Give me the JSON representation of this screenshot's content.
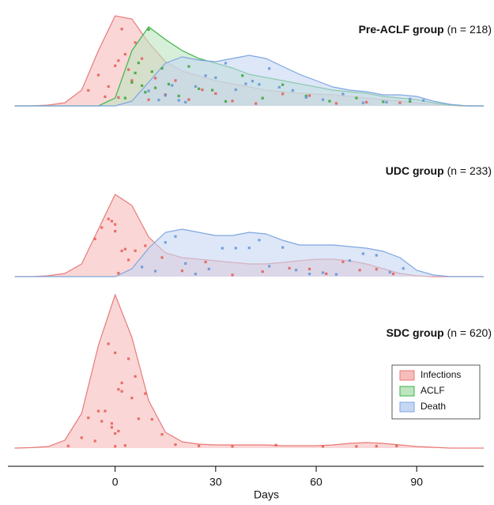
{
  "chart_data": {
    "type": "ridgeline",
    "x_label": "Days",
    "xlim": [
      -32,
      110
    ],
    "xticks": [
      0,
      30,
      60,
      90
    ],
    "x": [
      -30,
      -25,
      -20,
      -15,
      -10,
      -5,
      0,
      5,
      10,
      15,
      20,
      25,
      30,
      35,
      40,
      45,
      50,
      55,
      60,
      65,
      70,
      75,
      80,
      85,
      90,
      95,
      100,
      105,
      110
    ],
    "panels": [
      {
        "title": "Pre-ACLF group",
        "n_label": "(n = 218)",
        "series": [
          {
            "name": "Infections",
            "color": "#e77a78",
            "fill": "#f6bdbb",
            "point_color": "#e5534b",
            "values": [
              0,
              0,
              0.005,
              0.02,
              0.1,
              0.35,
              0.57,
              0.55,
              0.4,
              0.28,
              0.22,
              0.19,
              0.16,
              0.14,
              0.12,
              0.1,
              0.09,
              0.08,
              0.075,
              0.07,
              0.06,
              0.05,
              0.04,
              0.03,
              0.02,
              0.01,
              0.003,
              0,
              0
            ],
            "points": [
              -8,
              -5,
              -3,
              -2,
              0,
              1,
              1,
              2,
              3,
              4,
              5,
              6,
              8,
              10,
              12,
              15,
              18,
              22,
              26,
              30,
              35,
              42,
              50,
              58,
              66,
              75,
              85
            ]
          },
          {
            "name": "ACLF",
            "color": "#3cb44a",
            "fill": "#bde5bf",
            "point_color": "#2ca02c",
            "values": [
              0,
              0,
              0,
              0,
              0,
              0,
              0.05,
              0.35,
              0.5,
              0.42,
              0.35,
              0.3,
              0.27,
              0.24,
              0.2,
              0.18,
              0.16,
              0.14,
              0.12,
              0.1,
              0.09,
              0.08,
              0.06,
              0.05,
              0.04,
              0.02,
              0.005,
              0,
              0
            ],
            "points": [
              3,
              5,
              6,
              7,
              8,
              9,
              10,
              11,
              12,
              14,
              16,
              19,
              22,
              25,
              29,
              33,
              38,
              44,
              50,
              57,
              64,
              72,
              80,
              88
            ]
          },
          {
            "name": "Death",
            "color": "#7ea6e0",
            "fill": "#c6d7f3",
            "point_color": "#5b8fd6",
            "values": [
              0,
              0,
              0,
              0,
              0,
              0,
              0,
              0.03,
              0.15,
              0.27,
              0.31,
              0.29,
              0.28,
              0.3,
              0.32,
              0.3,
              0.25,
              0.2,
              0.16,
              0.12,
              0.1,
              0.09,
              0.07,
              0.07,
              0.06,
              0.03,
              0.01,
              0,
              0
            ],
            "points": [
              10,
              13,
              15,
              17,
              19,
              21,
              24,
              27,
              30,
              33,
              36,
              39,
              41,
              43,
              46,
              49,
              53,
              57,
              62,
              68,
              74,
              81,
              88,
              92
            ]
          }
        ]
      },
      {
        "title": "UDC group",
        "n_label": "(n = 233)",
        "series": [
          {
            "name": "Infections",
            "color": "#e77a78",
            "fill": "#f6bdbb",
            "point_color": "#e5534b",
            "values": [
              0,
              0,
              0.005,
              0.02,
              0.08,
              0.3,
              0.52,
              0.45,
              0.25,
              0.15,
              0.12,
              0.11,
              0.1,
              0.09,
              0.08,
              0.08,
              0.09,
              0.1,
              0.11,
              0.11,
              0.1,
              0.08,
              0.05,
              0.02,
              0.005,
              0,
              0,
              0,
              0
            ],
            "points": [
              -6,
              -4,
              -2,
              -1,
              0,
              0,
              1,
              2,
              3,
              4,
              6,
              9,
              14,
              20,
              27,
              35,
              44,
              52,
              58,
              63,
              68,
              73,
              78,
              83
            ]
          },
          {
            "name": "Death",
            "color": "#7ea6e0",
            "fill": "#c6d7f3",
            "point_color": "#5b8fd6",
            "values": [
              0,
              0,
              0,
              0,
              0,
              0,
              0,
              0.05,
              0.18,
              0.28,
              0.3,
              0.28,
              0.26,
              0.26,
              0.28,
              0.27,
              0.23,
              0.2,
              0.2,
              0.2,
              0.19,
              0.18,
              0.16,
              0.12,
              0.04,
              0.01,
              0,
              0,
              0
            ],
            "points": [
              8,
              12,
              15,
              18,
              21,
              24,
              28,
              32,
              36,
              40,
              43,
              46,
              50,
              54,
              58,
              62,
              66,
              70,
              74,
              78,
              82,
              86
            ]
          }
        ]
      },
      {
        "title": "SDC group",
        "n_label": "(n = 620)",
        "series": [
          {
            "name": "Infections",
            "color": "#e77a78",
            "fill": "#f6bdbb",
            "point_color": "#e5534b",
            "values": [
              0,
              0.003,
              0.01,
              0.05,
              0.22,
              0.65,
              0.97,
              0.7,
              0.3,
              0.1,
              0.04,
              0.025,
              0.02,
              0.02,
              0.02,
              0.02,
              0.015,
              0.015,
              0.015,
              0.02,
              0.03,
              0.035,
              0.03,
              0.02,
              0.01,
              0.005,
              0,
              0,
              0
            ],
            "points": [
              -14,
              -10,
              -8,
              -6,
              -5,
              -4,
              -3,
              -2,
              -1,
              -1,
              0,
              0,
              0,
              1,
              1,
              2,
              2,
              3,
              4,
              5,
              6,
              7,
              9,
              11,
              14,
              18,
              25,
              35,
              48,
              62,
              72,
              78,
              84
            ]
          }
        ]
      }
    ]
  }
}
